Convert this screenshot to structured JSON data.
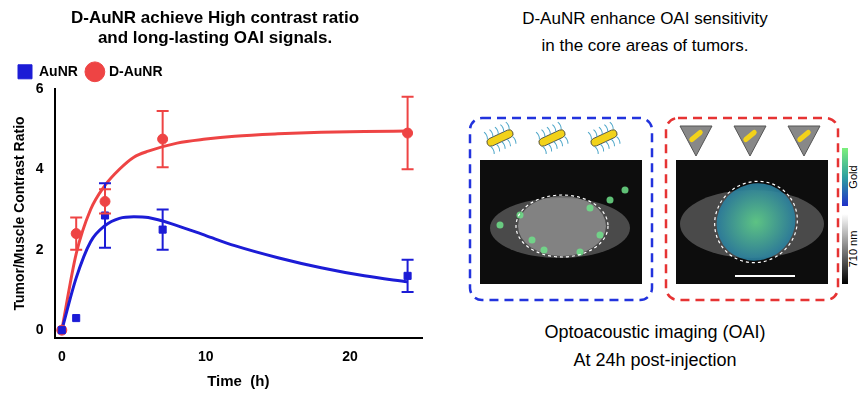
{
  "chart_data": {
    "type": "line",
    "title": [
      "D-AuNR achieve High contrast ratio",
      "and long-lasting OAI signals."
    ],
    "x_label": "Time  (h)",
    "y_label": "Tumor/Muscle Contrast Ratio",
    "xlim": [
      -0.5,
      25
    ],
    "xticks": [
      0,
      10,
      20
    ],
    "ylim": [
      -0.2,
      6
    ],
    "yticks": [
      0,
      2,
      4,
      6
    ],
    "grid": false,
    "legend": "top",
    "series": [
      {
        "name": "AuNR",
        "color": "#1c1cd6",
        "marker": "square",
        "x": [
          0,
          1,
          3,
          7,
          24
        ],
        "values": [
          0,
          0.3,
          2.85,
          2.5,
          1.35
        ],
        "errors": [
          null,
          null,
          0.8,
          0.5,
          0.4
        ],
        "fit_curve": {
          "x": [
            0,
            1,
            2,
            3,
            4,
            5,
            6,
            8,
            10,
            12,
            15,
            18,
            21,
            24
          ],
          "values": [
            0,
            1.3,
            2.2,
            2.6,
            2.78,
            2.82,
            2.8,
            2.6,
            2.35,
            2.1,
            1.8,
            1.55,
            1.35,
            1.2
          ]
        }
      },
      {
        "name": "D-AuNR",
        "color": "#ee4444",
        "marker": "circle",
        "x": [
          0,
          1,
          3,
          7,
          24
        ],
        "values": [
          0,
          2.4,
          3.2,
          4.75,
          4.9
        ],
        "errors": [
          null,
          0.4,
          0.3,
          0.7,
          0.9
        ],
        "fit_curve": {
          "x": [
            0,
            1,
            2,
            3,
            4,
            5,
            6,
            8,
            10,
            12,
            15,
            18,
            21,
            24
          ],
          "values": [
            0,
            1.9,
            3.0,
            3.6,
            4.0,
            4.3,
            4.45,
            4.65,
            4.75,
            4.82,
            4.88,
            4.92,
            4.94,
            4.95
          ]
        }
      }
    ]
  },
  "panel": {
    "title": [
      "D-AuNR enhance OAI sensitivity",
      "in the core areas of tumors."
    ],
    "caption": [
      "Optoacoustic imaging (OAI)",
      "At 24h post-injection"
    ],
    "colorbar_labels": [
      "Gold",
      "710 nm"
    ]
  }
}
